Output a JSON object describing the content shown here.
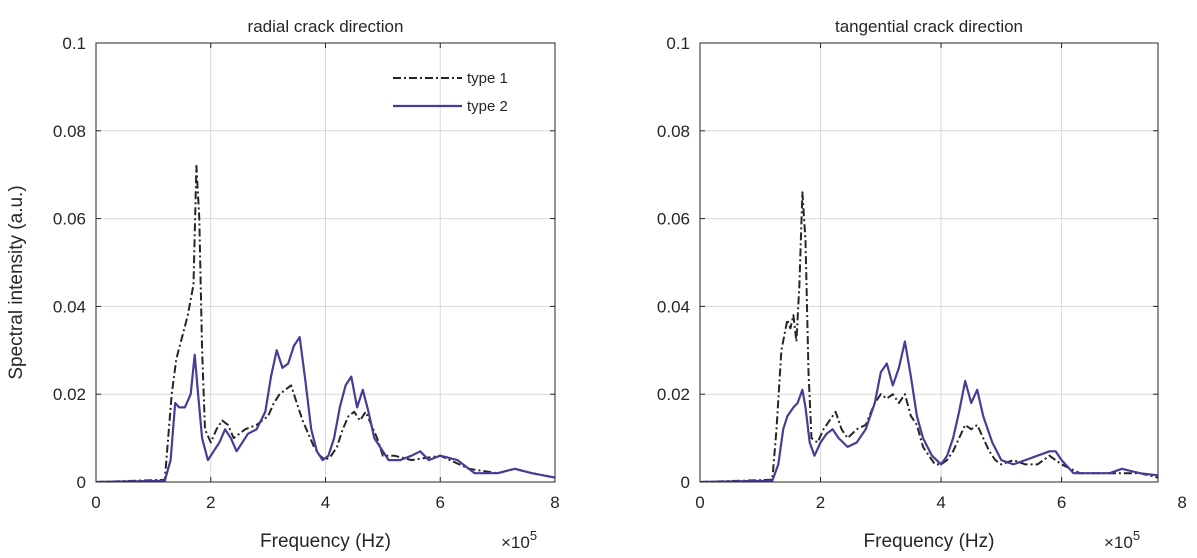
{
  "colors": {
    "type1": "#262626",
    "type2": "#4b3b96",
    "axis": "#262626",
    "grid": "#d9d9d9"
  },
  "exponent_label": {
    "base": "×10",
    "power": "5"
  },
  "chart_data": [
    {
      "type": "line",
      "title": "radial crack direction",
      "xlabel": "Frequency (Hz)",
      "ylabel": "Spectral intensity (a.u.)",
      "xlim": [
        0,
        8
      ],
      "ylim": [
        0,
        0.1
      ],
      "xticks": [
        "0",
        "2",
        "4",
        "6",
        "8"
      ],
      "yticks": [
        "0",
        "0.02",
        "0.04",
        "0.06",
        "0.08",
        "0.1"
      ],
      "grid": true,
      "legend": "top-right",
      "series": [
        {
          "name": "type 1",
          "style": "dash-dot",
          "x": [
            0,
            1.2,
            1.32,
            1.4,
            1.5,
            1.6,
            1.7,
            1.75,
            1.8,
            1.85,
            1.9,
            2.0,
            2.1,
            2.2,
            2.3,
            2.4,
            2.5,
            2.6,
            2.8,
            3.0,
            3.1,
            3.2,
            3.3,
            3.4,
            3.5,
            3.6,
            3.7,
            3.8,
            3.9,
            4.0,
            4.1,
            4.2,
            4.3,
            4.4,
            4.5,
            4.6,
            4.7,
            4.8,
            4.9,
            5.0,
            5.2,
            5.5,
            6.0,
            6.5,
            7.0,
            7.3,
            7.6,
            8.0
          ],
          "y": [
            0,
            0.0005,
            0.02,
            0.028,
            0.033,
            0.038,
            0.045,
            0.072,
            0.06,
            0.03,
            0.012,
            0.009,
            0.012,
            0.014,
            0.013,
            0.01,
            0.011,
            0.012,
            0.013,
            0.015,
            0.018,
            0.02,
            0.021,
            0.022,
            0.018,
            0.014,
            0.011,
            0.008,
            0.006,
            0.005,
            0.006,
            0.008,
            0.012,
            0.015,
            0.016,
            0.014,
            0.016,
            0.013,
            0.01,
            0.006,
            0.006,
            0.005,
            0.006,
            0.003,
            0.002,
            0.003,
            0.002,
            0.001
          ]
        },
        {
          "name": "type 2",
          "style": "solid",
          "x": [
            0,
            1.2,
            1.3,
            1.38,
            1.45,
            1.55,
            1.65,
            1.72,
            1.78,
            1.85,
            1.95,
            2.05,
            2.15,
            2.25,
            2.35,
            2.45,
            2.55,
            2.65,
            2.8,
            2.95,
            3.05,
            3.15,
            3.25,
            3.35,
            3.45,
            3.55,
            3.65,
            3.75,
            3.85,
            3.95,
            4.05,
            4.15,
            4.25,
            4.35,
            4.45,
            4.55,
            4.65,
            4.75,
            4.85,
            4.95,
            5.1,
            5.3,
            5.5,
            5.65,
            5.8,
            6.0,
            6.3,
            6.6,
            7.0,
            7.3,
            7.6,
            8.0
          ],
          "y": [
            0,
            0.0003,
            0.005,
            0.018,
            0.017,
            0.017,
            0.02,
            0.029,
            0.02,
            0.01,
            0.005,
            0.007,
            0.009,
            0.012,
            0.01,
            0.007,
            0.009,
            0.011,
            0.012,
            0.016,
            0.024,
            0.03,
            0.026,
            0.027,
            0.031,
            0.033,
            0.023,
            0.012,
            0.007,
            0.005,
            0.006,
            0.01,
            0.017,
            0.022,
            0.024,
            0.017,
            0.021,
            0.016,
            0.01,
            0.008,
            0.005,
            0.005,
            0.006,
            0.007,
            0.005,
            0.006,
            0.005,
            0.002,
            0.002,
            0.003,
            0.002,
            0.001
          ]
        }
      ]
    },
    {
      "type": "line",
      "title": "tangential crack direction",
      "xlabel": "Frequency (Hz)",
      "ylabel": "",
      "xlim": [
        0,
        7.6
      ],
      "ylim": [
        0,
        0.1
      ],
      "xticks": [
        "0",
        "2",
        "4",
        "6"
      ],
      "xticks_outside": [
        "8"
      ],
      "yticks": [
        "0",
        "0.02",
        "0.04",
        "0.06",
        "0.08",
        "0.1"
      ],
      "grid": true,
      "legend": "",
      "series": [
        {
          "name": "type 1",
          "style": "dash-dot",
          "x": [
            0,
            1.2,
            1.27,
            1.35,
            1.45,
            1.5,
            1.55,
            1.6,
            1.65,
            1.7,
            1.75,
            1.8,
            1.85,
            1.95,
            2.05,
            2.15,
            2.25,
            2.35,
            2.45,
            2.6,
            2.75,
            2.9,
            3.0,
            3.1,
            3.2,
            3.3,
            3.4,
            3.5,
            3.6,
            3.7,
            3.8,
            3.9,
            4.0,
            4.1,
            4.2,
            4.3,
            4.4,
            4.5,
            4.6,
            4.7,
            4.8,
            4.9,
            5.0,
            5.2,
            5.4,
            5.6,
            5.8,
            6.0,
            6.3,
            6.6,
            7.0,
            7.3,
            7.6
          ],
          "y": [
            0,
            0.0005,
            0.012,
            0.03,
            0.037,
            0.035,
            0.038,
            0.032,
            0.045,
            0.066,
            0.055,
            0.025,
            0.01,
            0.009,
            0.012,
            0.014,
            0.016,
            0.012,
            0.01,
            0.012,
            0.013,
            0.018,
            0.02,
            0.019,
            0.02,
            0.018,
            0.02,
            0.015,
            0.013,
            0.008,
            0.006,
            0.004,
            0.004,
            0.005,
            0.007,
            0.01,
            0.013,
            0.012,
            0.013,
            0.01,
            0.007,
            0.005,
            0.004,
            0.005,
            0.004,
            0.004,
            0.006,
            0.004,
            0.002,
            0.002,
            0.002,
            0.002,
            0.001
          ]
        },
        {
          "name": "type 2",
          "style": "solid",
          "x": [
            0,
            1.2,
            1.3,
            1.38,
            1.45,
            1.55,
            1.62,
            1.7,
            1.75,
            1.82,
            1.9,
            2.0,
            2.1,
            2.2,
            2.3,
            2.45,
            2.6,
            2.75,
            2.9,
            3.0,
            3.1,
            3.2,
            3.3,
            3.4,
            3.5,
            3.6,
            3.7,
            3.85,
            4.0,
            4.1,
            4.2,
            4.3,
            4.4,
            4.5,
            4.6,
            4.7,
            4.85,
            5.0,
            5.2,
            5.4,
            5.6,
            5.8,
            5.9,
            6.0,
            6.2,
            6.5,
            6.8,
            7.0,
            7.3,
            7.6
          ],
          "y": [
            0,
            0.0003,
            0.004,
            0.012,
            0.015,
            0.017,
            0.018,
            0.021,
            0.017,
            0.009,
            0.006,
            0.009,
            0.011,
            0.012,
            0.01,
            0.008,
            0.009,
            0.012,
            0.018,
            0.025,
            0.027,
            0.022,
            0.026,
            0.032,
            0.024,
            0.015,
            0.01,
            0.006,
            0.004,
            0.006,
            0.01,
            0.016,
            0.023,
            0.018,
            0.021,
            0.015,
            0.009,
            0.005,
            0.004,
            0.005,
            0.006,
            0.007,
            0.007,
            0.005,
            0.002,
            0.002,
            0.002,
            0.003,
            0.002,
            0.0015
          ]
        }
      ]
    }
  ]
}
